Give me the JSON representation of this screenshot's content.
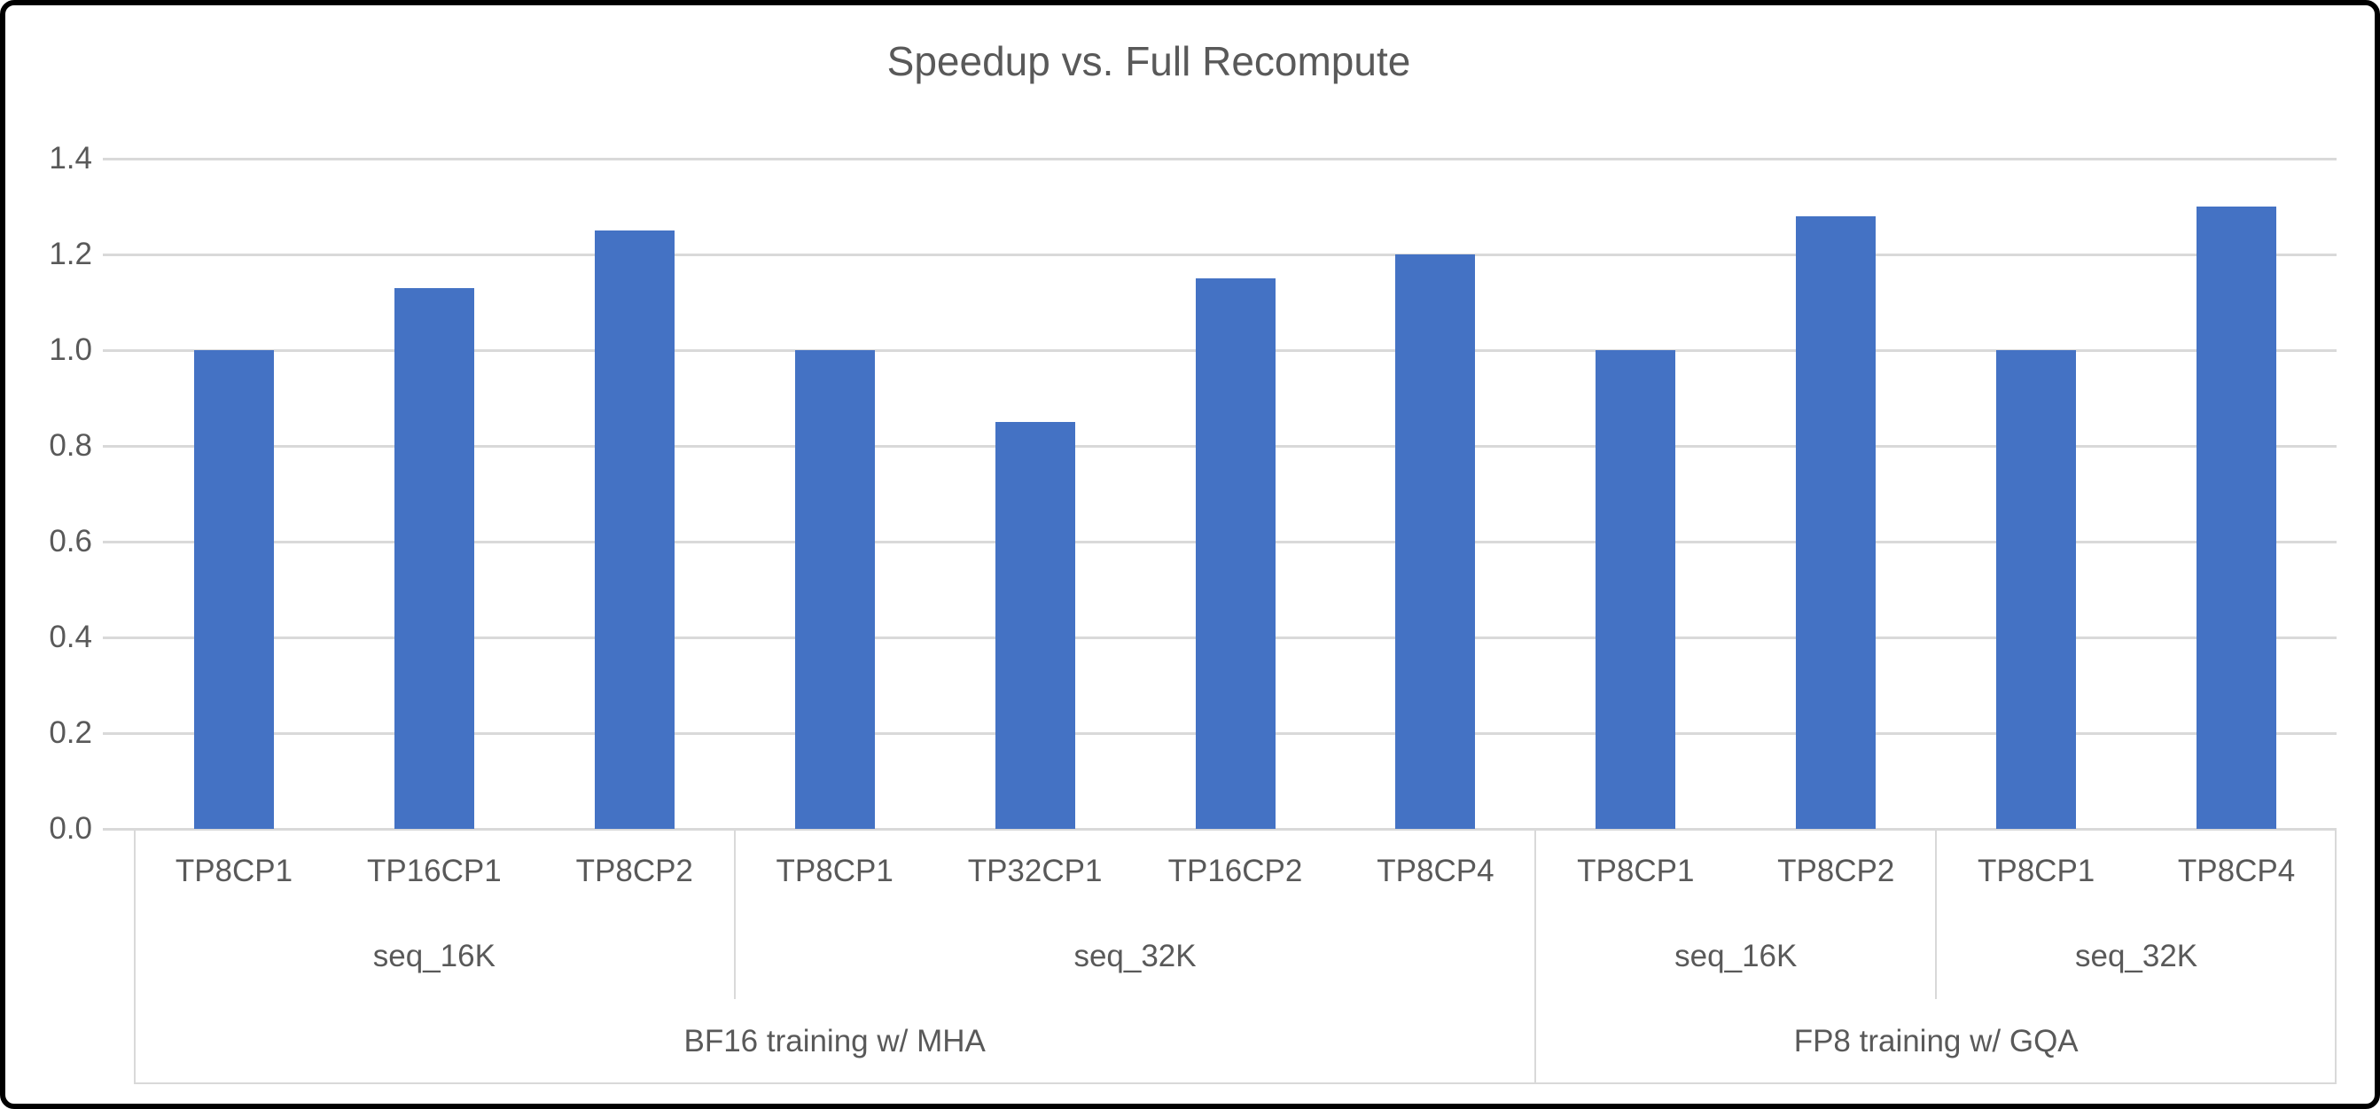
{
  "window": {
    "background": "#ffffff",
    "frame_border_color": "#000000"
  },
  "chart_data": {
    "type": "bar",
    "title": "Speedup vs. Full Recompute",
    "xlabel": "",
    "ylabel": "",
    "ylim": [
      0,
      1.4
    ],
    "ytick_step": 0.2,
    "ytick_labels": [
      "0.0",
      "0.2",
      "0.4",
      "0.6",
      "0.8",
      "1.0",
      "1.2",
      "1.4"
    ],
    "grid": true,
    "legend": false,
    "bar_color": "#4472c4",
    "gridline_color": "#d9d9d9",
    "text_color": "#595959",
    "groups": [
      {
        "label": "BF16 training w/ MHA",
        "seq_groups": [
          {
            "label": "seq_16K",
            "bars": [
              {
                "label": "TP8CP1",
                "value": 1.0
              },
              {
                "label": "TP16CP1",
                "value": 1.13
              },
              {
                "label": "TP8CP2",
                "value": 1.25
              }
            ]
          },
          {
            "label": "seq_32K",
            "bars": [
              {
                "label": "TP8CP1",
                "value": 1.0
              },
              {
                "label": "TP32CP1",
                "value": 0.85
              },
              {
                "label": "TP16CP2",
                "value": 1.15
              },
              {
                "label": "TP8CP4",
                "value": 1.2
              }
            ]
          }
        ]
      },
      {
        "label": "FP8 training w/ GQA",
        "seq_groups": [
          {
            "label": "seq_16K",
            "bars": [
              {
                "label": "TP8CP1",
                "value": 1.0
              },
              {
                "label": "TP8CP2",
                "value": 1.28
              }
            ]
          },
          {
            "label": "seq_32K",
            "bars": [
              {
                "label": "TP8CP1",
                "value": 1.0
              },
              {
                "label": "TP8CP4",
                "value": 1.3
              }
            ]
          }
        ]
      }
    ]
  }
}
